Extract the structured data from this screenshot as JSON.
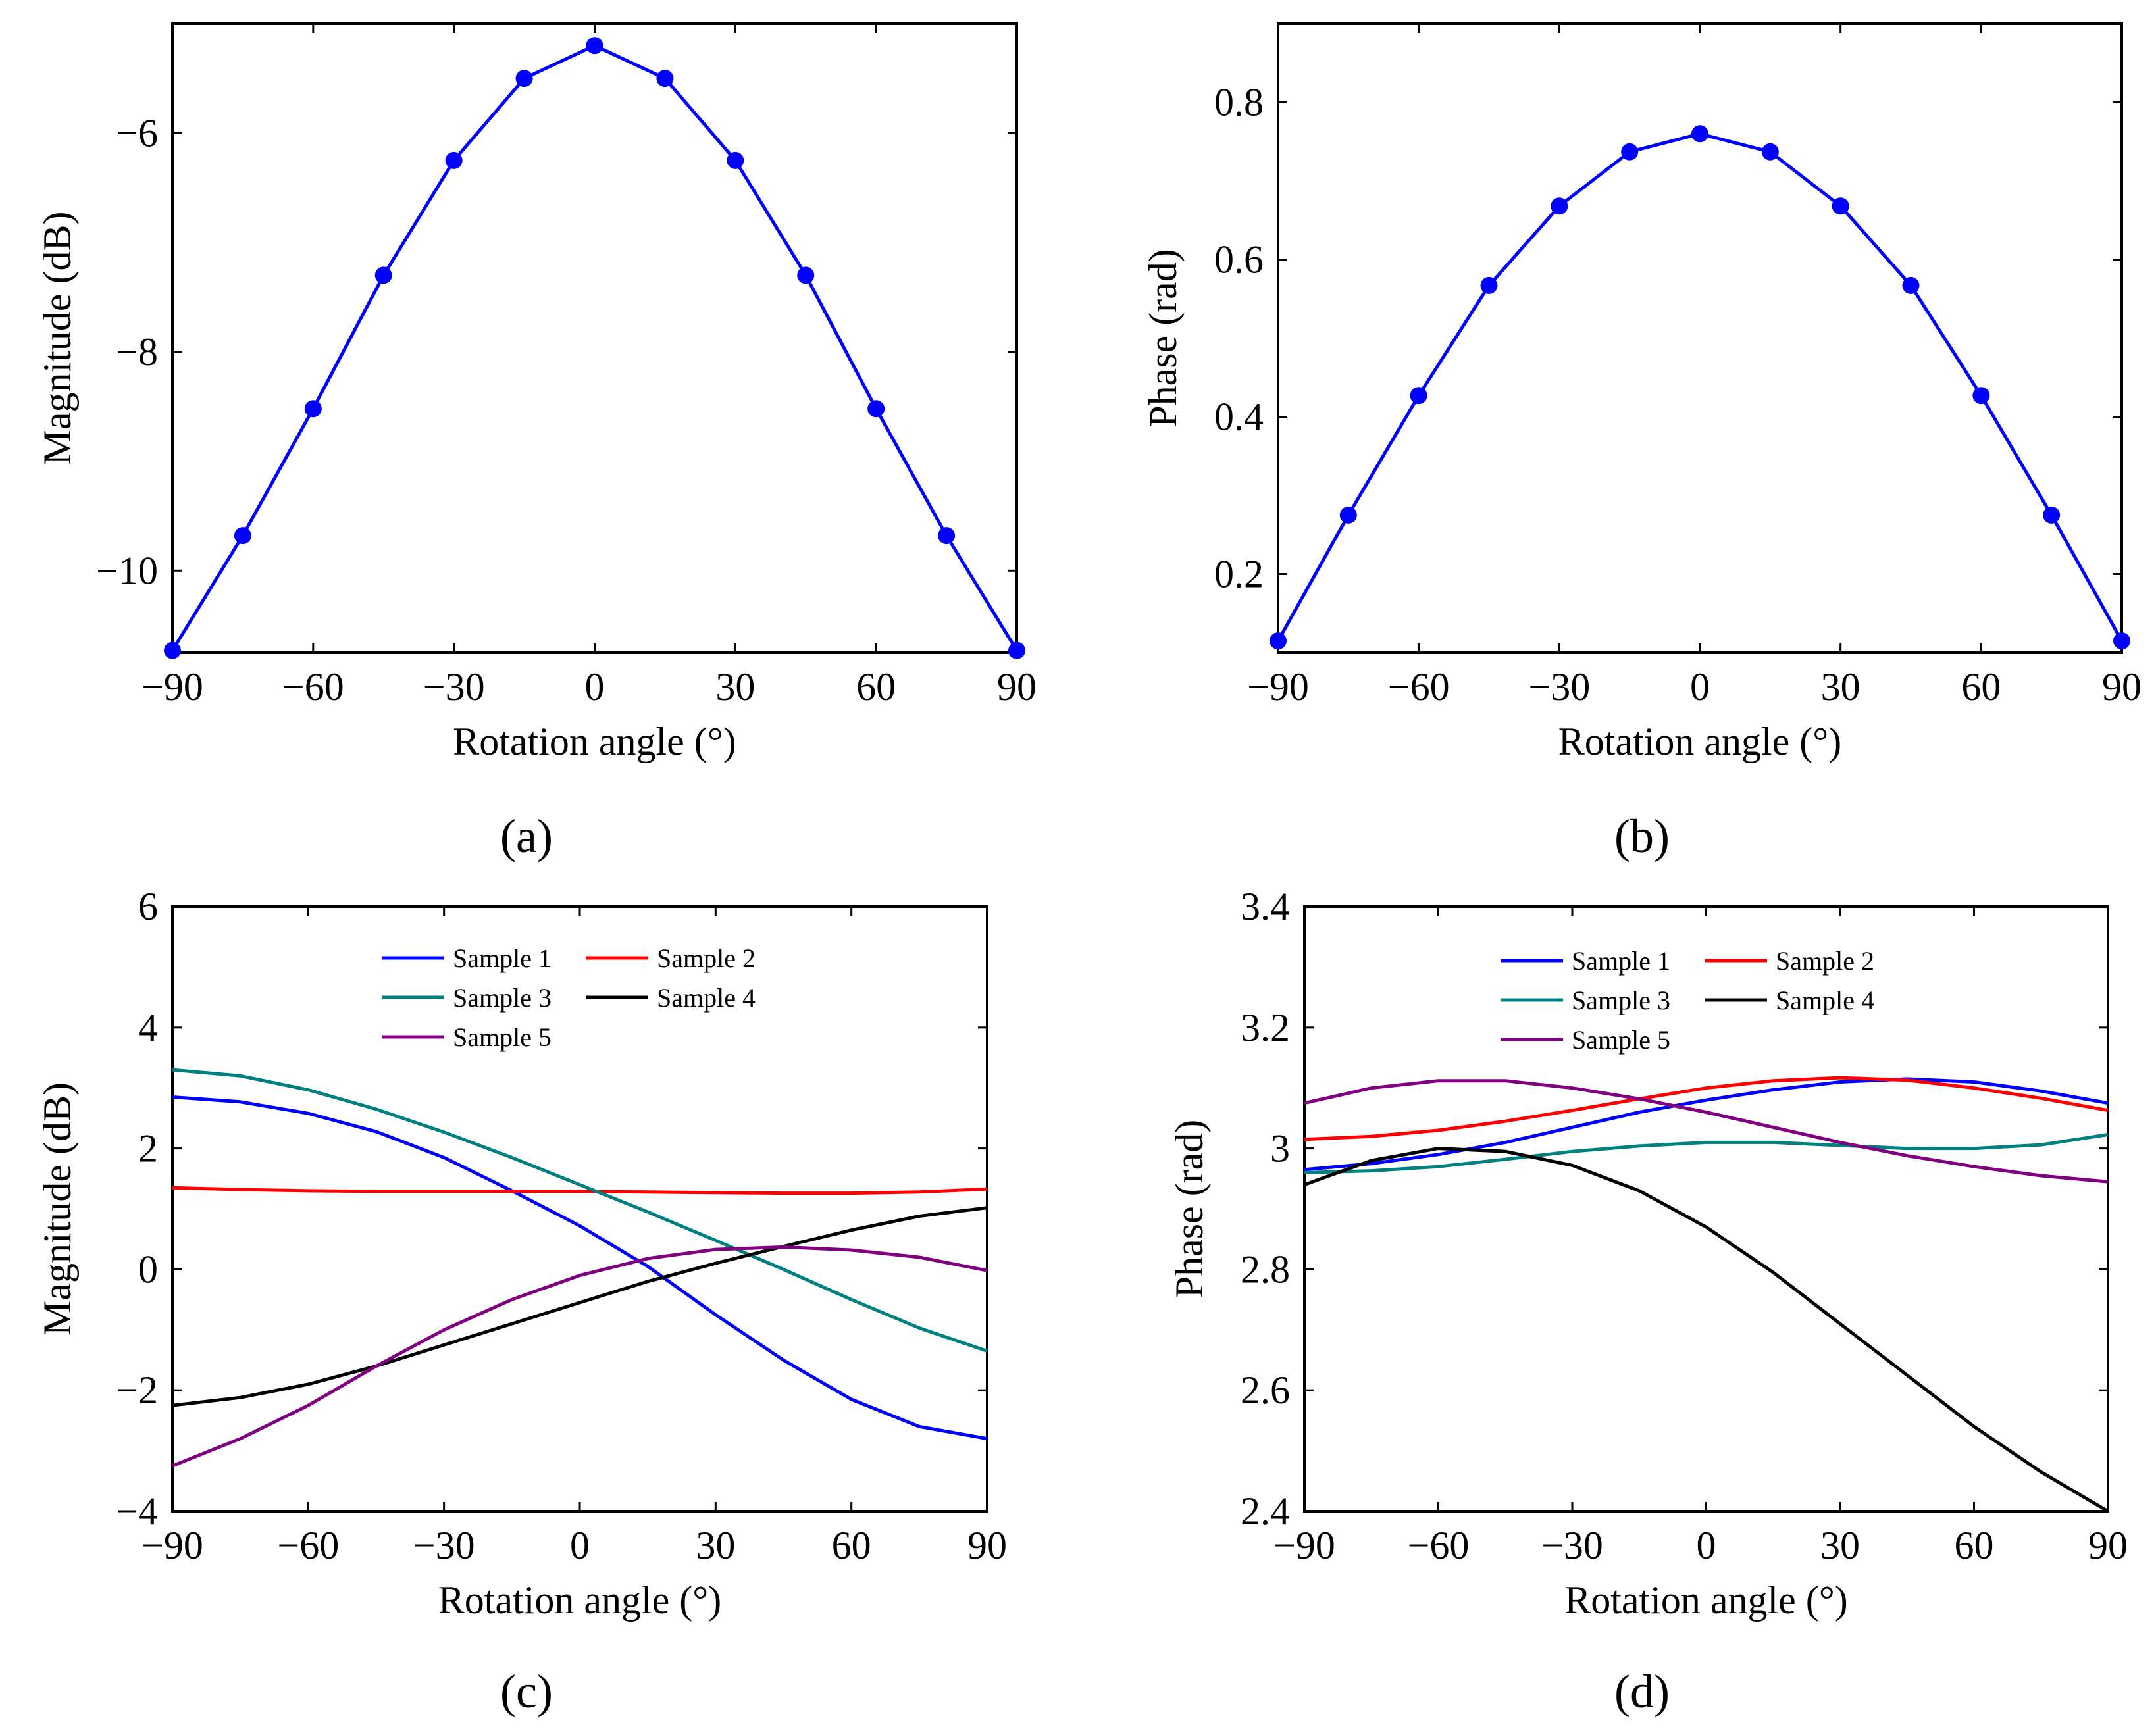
{
  "panel_labels": [
    "(a)",
    "(b)",
    "(c)",
    "(d)"
  ],
  "chart_data": [
    {
      "type": "line",
      "panel": "(a)",
      "xlabel": "Rotation angle (°)",
      "ylabel": "Magnitude (dB)",
      "xlim": [
        -90,
        90
      ],
      "ylim": [
        -10.75,
        -5.0
      ],
      "xticks": [
        -90,
        -60,
        -30,
        0,
        30,
        60,
        90
      ],
      "xtick_labels": [
        "−90",
        "−60",
        "−30",
        "0",
        "30",
        "60",
        "90"
      ],
      "yticks": [
        -10,
        -8,
        -6
      ],
      "ytick_labels": [
        "−10",
        "−8",
        "−6"
      ],
      "markers": true,
      "grid": false,
      "series": [
        {
          "color": "#0000ff",
          "x": [
            -90,
            -75,
            -60,
            -45,
            -30,
            -15,
            0,
            15,
            30,
            45,
            60,
            75,
            90
          ],
          "values": [
            -10.73,
            -9.68,
            -8.52,
            -7.3,
            -6.25,
            -5.5,
            -5.2,
            -5.5,
            -6.25,
            -7.3,
            -8.52,
            -9.68,
            -10.73
          ]
        }
      ]
    },
    {
      "type": "line",
      "panel": "(b)",
      "xlabel": "Rotation angle (°)",
      "ylabel": "Phase (rad)",
      "xlim": [
        -90,
        90
      ],
      "ylim": [
        0.1,
        0.9
      ],
      "xticks": [
        -90,
        -60,
        -30,
        0,
        30,
        60,
        90
      ],
      "xtick_labels": [
        "−90",
        "−60",
        "−30",
        "0",
        "30",
        "60",
        "90"
      ],
      "yticks": [
        0.2,
        0.4,
        0.6,
        0.8
      ],
      "ytick_labels": [
        "0.2",
        "0.4",
        "0.6",
        "0.8"
      ],
      "markers": true,
      "grid": false,
      "series": [
        {
          "color": "#0000ff",
          "x": [
            -90,
            -75,
            -60,
            -45,
            -30,
            -15,
            0,
            15,
            30,
            45,
            60,
            75,
            90
          ],
          "values": [
            0.115,
            0.275,
            0.427,
            0.567,
            0.668,
            0.737,
            0.76,
            0.737,
            0.668,
            0.567,
            0.427,
            0.275,
            0.115
          ]
        }
      ]
    },
    {
      "type": "line",
      "panel": "(c)",
      "xlabel": "Rotation angle (°)",
      "ylabel": "Magnitude (dB)",
      "xlim": [
        -90,
        90
      ],
      "ylim": [
        -4,
        6
      ],
      "xticks": [
        -90,
        -60,
        -30,
        0,
        30,
        60,
        90
      ],
      "xtick_labels": [
        "−90",
        "−60",
        "−30",
        "0",
        "30",
        "60",
        "90"
      ],
      "yticks": [
        -4,
        -2,
        0,
        2,
        4,
        6
      ],
      "ytick_labels": [
        "−4",
        "−2",
        "0",
        "2",
        "4",
        "6"
      ],
      "markers": false,
      "grid": false,
      "legend_position": "top-center",
      "series": [
        {
          "name": "Sample 1",
          "color": "#0000ff",
          "x": [
            -90,
            -75,
            -60,
            -45,
            -30,
            -15,
            0,
            15,
            30,
            45,
            60,
            75,
            90
          ],
          "values": [
            2.85,
            2.77,
            2.58,
            2.28,
            1.85,
            1.3,
            0.72,
            0.05,
            -0.75,
            -1.5,
            -2.15,
            -2.6,
            -2.8
          ]
        },
        {
          "name": "Sample 2",
          "color": "#ff0000",
          "x": [
            -90,
            -75,
            -60,
            -45,
            -30,
            -15,
            0,
            15,
            30,
            45,
            60,
            75,
            90
          ],
          "values": [
            1.35,
            1.32,
            1.3,
            1.29,
            1.29,
            1.29,
            1.29,
            1.28,
            1.27,
            1.26,
            1.26,
            1.28,
            1.33
          ]
        },
        {
          "name": "Sample 3",
          "color": "#008080",
          "x": [
            -90,
            -75,
            -60,
            -45,
            -30,
            -15,
            0,
            15,
            30,
            45,
            60,
            75,
            90
          ],
          "values": [
            3.3,
            3.2,
            2.97,
            2.65,
            2.27,
            1.85,
            1.4,
            0.95,
            0.48,
            0.0,
            -0.5,
            -0.97,
            -1.35
          ]
        },
        {
          "name": "Sample 4",
          "color": "#000000",
          "x": [
            -90,
            -75,
            -60,
            -45,
            -30,
            -15,
            0,
            15,
            30,
            45,
            60,
            75,
            90
          ],
          "values": [
            -2.25,
            -2.12,
            -1.9,
            -1.6,
            -1.25,
            -0.9,
            -0.55,
            -0.2,
            0.1,
            0.38,
            0.65,
            0.88,
            1.02
          ]
        },
        {
          "name": "Sample 5",
          "color": "#800080",
          "x": [
            -90,
            -75,
            -60,
            -45,
            -30,
            -15,
            0,
            15,
            30,
            45,
            60,
            75,
            90
          ],
          "values": [
            -3.25,
            -2.8,
            -2.25,
            -1.6,
            -1.0,
            -0.5,
            -0.1,
            0.18,
            0.33,
            0.37,
            0.32,
            0.2,
            -0.02
          ]
        }
      ]
    },
    {
      "type": "line",
      "panel": "(d)",
      "xlabel": "Rotation angle (°)",
      "ylabel": "Phase (rad)",
      "xlim": [
        -90,
        90
      ],
      "ylim": [
        2.4,
        3.4
      ],
      "xticks": [
        -90,
        -60,
        -30,
        0,
        30,
        60,
        90
      ],
      "xtick_labels": [
        "−90",
        "−60",
        "−30",
        "0",
        "30",
        "60",
        "90"
      ],
      "yticks": [
        2.4,
        2.6,
        2.8,
        3.0,
        3.2,
        3.4
      ],
      "ytick_labels": [
        "2.4",
        "2.6",
        "2.8",
        "3",
        "3.2",
        "3.4"
      ],
      "markers": false,
      "grid": false,
      "legend_position": "top-center",
      "series": [
        {
          "name": "Sample 1",
          "color": "#0000ff",
          "x": [
            -90,
            -75,
            -60,
            -45,
            -30,
            -15,
            0,
            15,
            30,
            45,
            60,
            75,
            90
          ],
          "values": [
            2.965,
            2.975,
            2.99,
            3.01,
            3.035,
            3.06,
            3.08,
            3.097,
            3.11,
            3.115,
            3.11,
            3.095,
            3.075
          ]
        },
        {
          "name": "Sample 2",
          "color": "#ff0000",
          "x": [
            -90,
            -75,
            -60,
            -45,
            -30,
            -15,
            0,
            15,
            30,
            45,
            60,
            75,
            90
          ],
          "values": [
            3.015,
            3.02,
            3.03,
            3.045,
            3.063,
            3.082,
            3.1,
            3.112,
            3.117,
            3.113,
            3.1,
            3.083,
            3.063
          ]
        },
        {
          "name": "Sample 3",
          "color": "#008080",
          "x": [
            -90,
            -75,
            -60,
            -45,
            -30,
            -15,
            0,
            15,
            30,
            45,
            60,
            75,
            90
          ],
          "values": [
            2.96,
            2.963,
            2.97,
            2.982,
            2.995,
            3.004,
            3.01,
            3.01,
            3.005,
            3.0,
            3.0,
            3.006,
            3.023
          ]
        },
        {
          "name": "Sample 4",
          "color": "#000000",
          "x": [
            -90,
            -75,
            -60,
            -45,
            -30,
            -15,
            0,
            15,
            30,
            45,
            60,
            75,
            90
          ],
          "values": [
            2.94,
            2.98,
            3.0,
            2.995,
            2.972,
            2.93,
            2.87,
            2.795,
            2.71,
            2.625,
            2.54,
            2.465,
            2.4
          ]
        },
        {
          "name": "Sample 5",
          "color": "#800080",
          "x": [
            -90,
            -75,
            -60,
            -45,
            -30,
            -15,
            0,
            15,
            30,
            45,
            60,
            75,
            90
          ],
          "values": [
            3.075,
            3.1,
            3.112,
            3.112,
            3.1,
            3.082,
            3.06,
            3.035,
            3.01,
            2.988,
            2.97,
            2.955,
            2.945
          ]
        }
      ]
    }
  ]
}
